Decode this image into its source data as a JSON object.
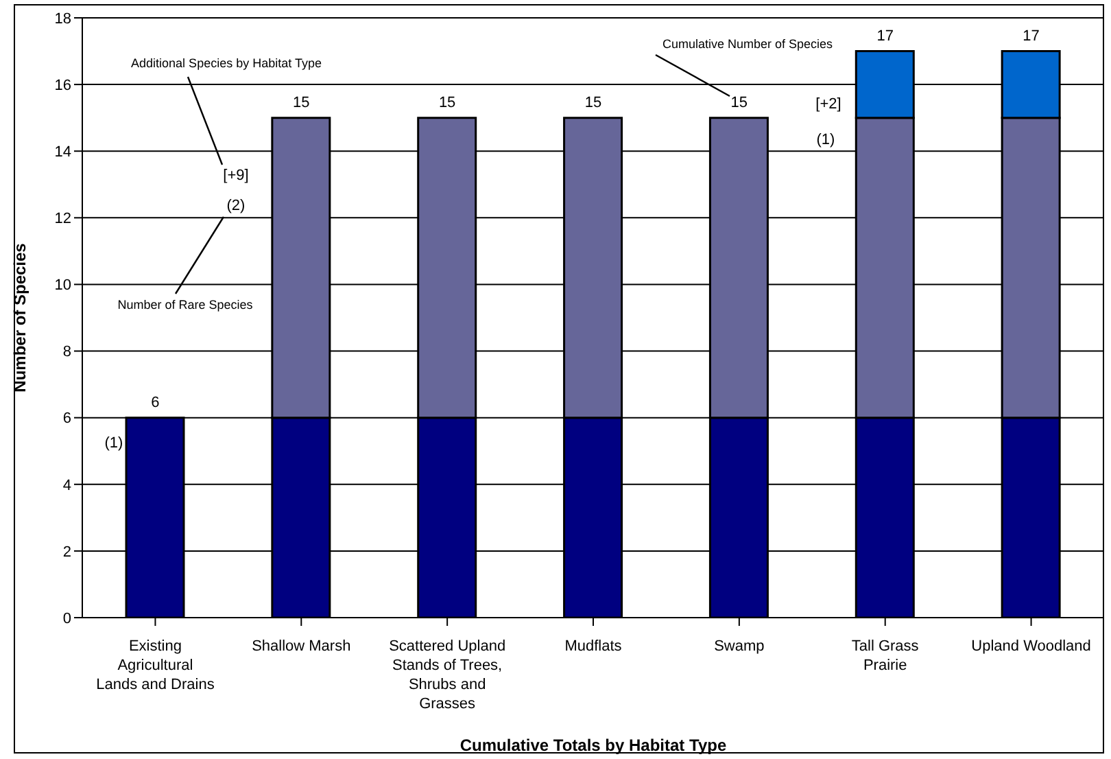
{
  "chart_data": {
    "type": "bar",
    "stacked": true,
    "xlabel": "Cumulative Totals by Habitat Type",
    "ylabel": "Number of Species",
    "categories": [
      "Existing Agricultural Lands and Drains",
      "Shallow Marsh",
      "Scattered Upland Stands of Trees, Shrubs and Grasses",
      "Mudflats",
      "Swamp",
      "Tall Grass Prairie",
      "Upland Woodland"
    ],
    "series": [
      {
        "color": "#000080",
        "values": [
          6,
          6,
          6,
          6,
          6,
          6,
          6
        ]
      },
      {
        "color": "#666699",
        "values": [
          0,
          9,
          9,
          9,
          9,
          9,
          9
        ]
      },
      {
        "color": "#0066cc",
        "values": [
          0,
          0,
          0,
          0,
          0,
          2,
          2
        ]
      }
    ],
    "totals": [
      "6",
      "15",
      "15",
      "15",
      "15",
      "17",
      "17"
    ],
    "ylim": [
      0,
      18
    ],
    "yticks": [
      0,
      2,
      4,
      6,
      8,
      10,
      12,
      14,
      16,
      18
    ],
    "grid": "y",
    "legend": false,
    "annotations": [
      "Additional Species by Habitat Type",
      "[+9]",
      "(2)",
      "Number of Rare Species",
      "(1)",
      "Cumulative Number of Species",
      "[+2]",
      "(1)"
    ]
  }
}
